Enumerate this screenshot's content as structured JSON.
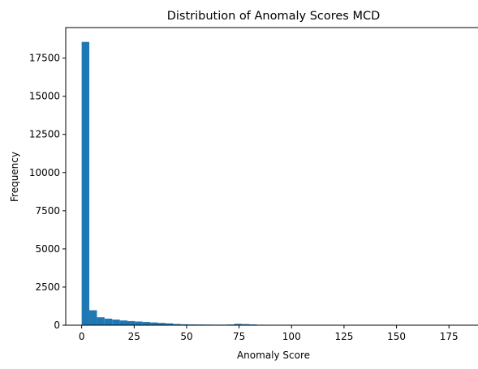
{
  "chart_data": {
    "type": "bar",
    "title": "Distribution of Anomaly Scores MCD",
    "xlabel": "Anomaly Score",
    "ylabel": "Frequency",
    "xlim": [
      -7.6,
      190
    ],
    "ylim": [
      0,
      19500
    ],
    "xticks": [
      0,
      25,
      50,
      75,
      100,
      125,
      150,
      175
    ],
    "yticks": [
      0,
      2500,
      5000,
      7500,
      10000,
      12500,
      15000,
      17500
    ],
    "bar_color": "#1f77b4",
    "grid": false,
    "bin_start": 0,
    "bin_width": 3.63,
    "values": [
      18560,
      980,
      520,
      430,
      370,
      310,
      270,
      240,
      210,
      180,
      150,
      120,
      80,
      60,
      50,
      45,
      40,
      35,
      35,
      45,
      90,
      70,
      50,
      30,
      15,
      10,
      8,
      6,
      5,
      4,
      4,
      3,
      3,
      3,
      2,
      2,
      2,
      2,
      2,
      2,
      1,
      1,
      1,
      1,
      1,
      1,
      1,
      1,
      1,
      1
    ]
  }
}
